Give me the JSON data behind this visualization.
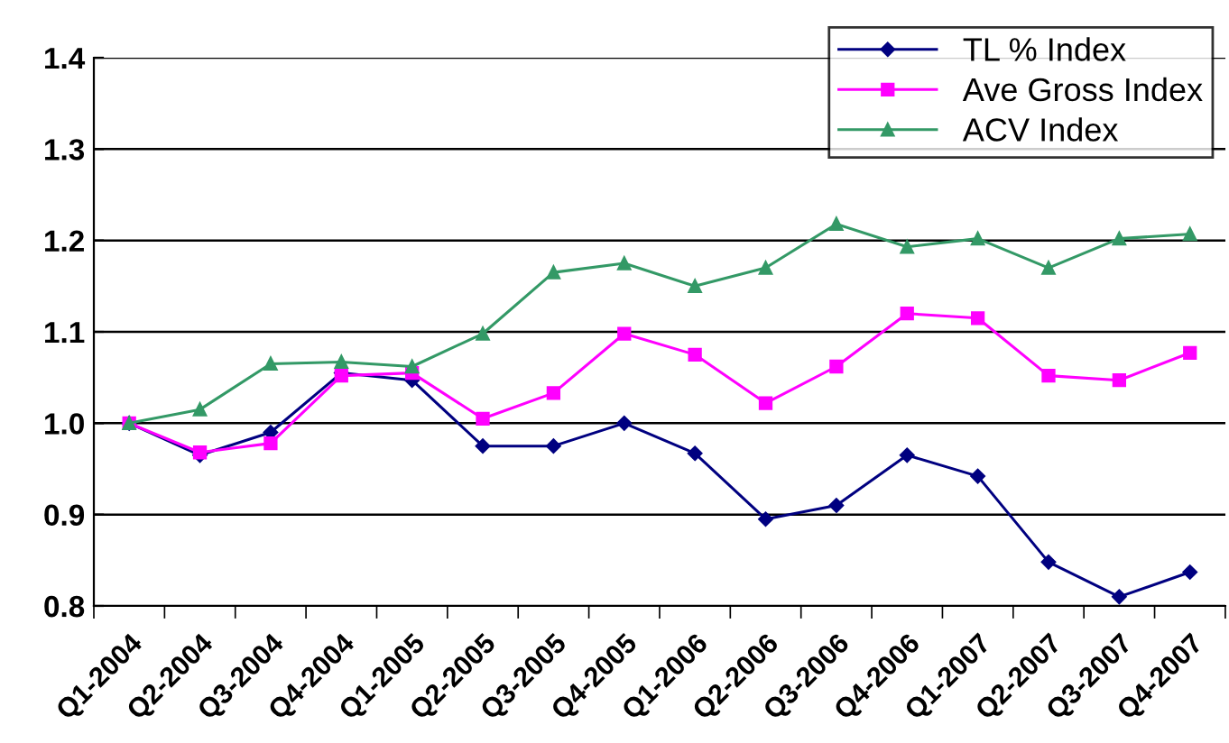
{
  "chart_data": {
    "type": "line",
    "categories": [
      "Q1-2004",
      "Q2-2004",
      "Q3-2004",
      "Q4-2004",
      "Q1-2005",
      "Q2-2005",
      "Q3-2005",
      "Q4-2005",
      "Q1-2006",
      "Q2-2006",
      "Q3-2006",
      "Q4-2006",
      "Q1-2007",
      "Q2-2007",
      "Q3-2007",
      "Q4-2007"
    ],
    "series": [
      {
        "name": "TL % Index",
        "color": "#000080",
        "marker": "diamond",
        "values": [
          1.0,
          0.965,
          0.99,
          1.055,
          1.047,
          0.975,
          0.975,
          1.0,
          0.967,
          0.895,
          0.91,
          0.965,
          0.942,
          0.848,
          0.81,
          0.837
        ]
      },
      {
        "name": "Ave Gross Index",
        "color": "#ff00ff",
        "marker": "square",
        "values": [
          1.0,
          0.968,
          0.978,
          1.052,
          1.055,
          1.005,
          1.033,
          1.098,
          1.075,
          1.022,
          1.062,
          1.12,
          1.115,
          1.052,
          1.047,
          1.077
        ]
      },
      {
        "name": "ACV Index",
        "color": "#339966",
        "marker": "triangle",
        "values": [
          1.0,
          1.015,
          1.065,
          1.067,
          1.062,
          1.098,
          1.165,
          1.175,
          1.15,
          1.17,
          1.218,
          1.193,
          1.202,
          1.17,
          1.202,
          1.207
        ]
      }
    ],
    "ylim": [
      0.8,
      1.4
    ],
    "yticks": [
      {
        "value": 0.8,
        "label": "0.8"
      },
      {
        "value": 0.9,
        "label": "0.9"
      },
      {
        "value": 1.0,
        "label": "1.0"
      },
      {
        "value": 1.1,
        "label": "1.1"
      },
      {
        "value": 1.2,
        "label": "1.2"
      },
      {
        "value": 1.3,
        "label": "1.3"
      },
      {
        "value": 1.4,
        "label": "1.4"
      }
    ],
    "grid": "y",
    "legend": "top right",
    "line_style": "solid"
  }
}
